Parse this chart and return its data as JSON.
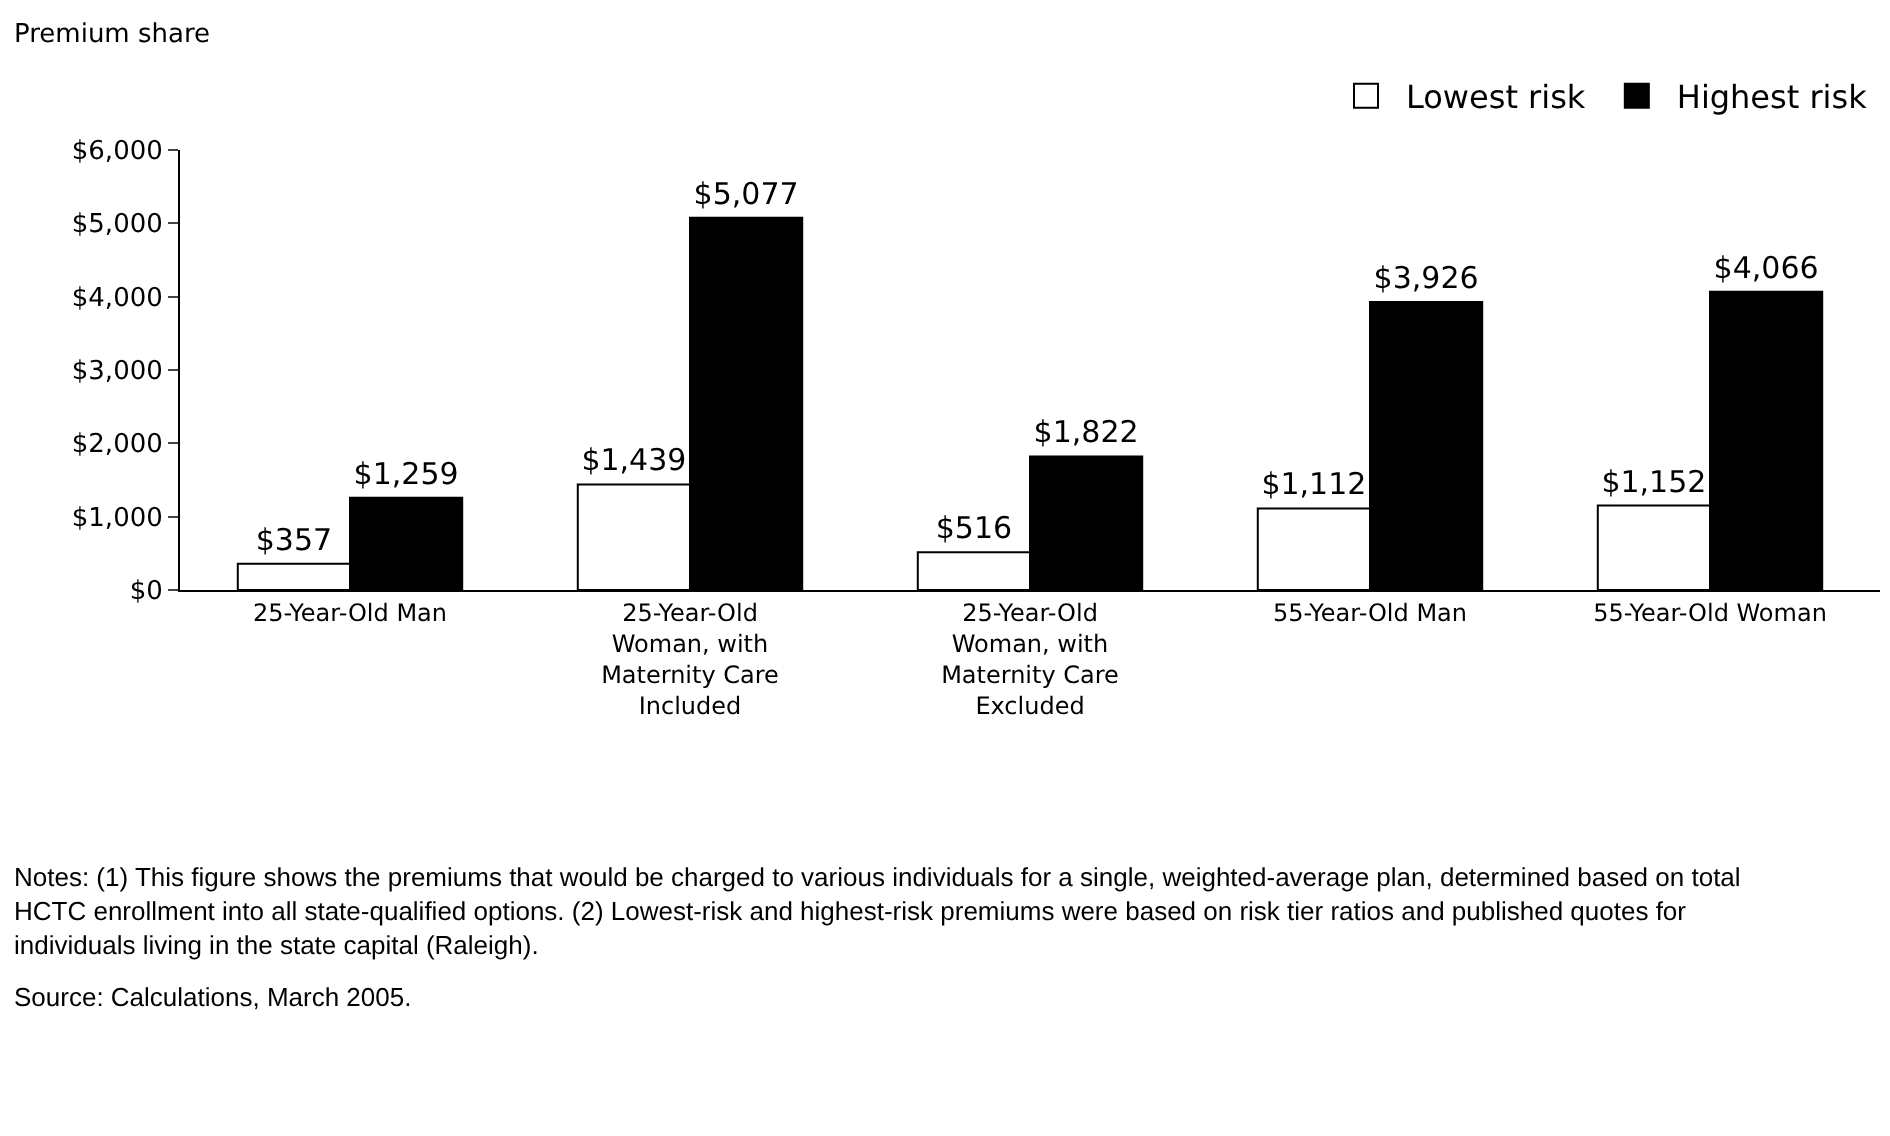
{
  "chart_data": {
    "type": "bar",
    "ylabel": "Premium share",
    "categories": [
      "25-Year-Old Man",
      "25-Year-Old Woman, with Maternity Care Included",
      "25-Year-Old Woman, with Maternity Care Excluded",
      "55-Year-Old Man",
      "55-Year-Old Woman"
    ],
    "series": [
      {
        "name": "Lowest risk",
        "color": "#ffffff",
        "values": [
          357,
          1439,
          516,
          1112,
          1152
        ],
        "value_labels": [
          "$357",
          "$1,439",
          "$516",
          "$1,112",
          "$1,152"
        ]
      },
      {
        "name": "Highest risk",
        "color": "#000000",
        "values": [
          1259,
          5077,
          1822,
          3926,
          4066
        ],
        "value_labels": [
          "$1,259",
          "$5,077",
          "$1,822",
          "$3,926",
          "$4,066"
        ]
      }
    ],
    "ylim": [
      0,
      6000
    ],
    "yticks": [
      {
        "value": 0,
        "label": "$0"
      },
      {
        "value": 1000,
        "label": "$1,000"
      },
      {
        "value": 2000,
        "label": "$2,000"
      },
      {
        "value": 3000,
        "label": "$3,000"
      },
      {
        "value": 4000,
        "label": "$4,000"
      },
      {
        "value": 5000,
        "label": "$5,000"
      },
      {
        "value": 6000,
        "label": "$6,000"
      }
    ],
    "legend": "top right",
    "annotations": [
      "Notes: (1) This figure shows the premiums that would be charged to various individuals for a single, weighted-average plan, determined based on total HCTC enrollment into all state-qualified options. (2) Lowest-risk and highest-risk premiums were based on risk tier ratios and published quotes for individuals living in the state capital (Raleigh).",
      "Source: Calculations, March 2005."
    ]
  }
}
